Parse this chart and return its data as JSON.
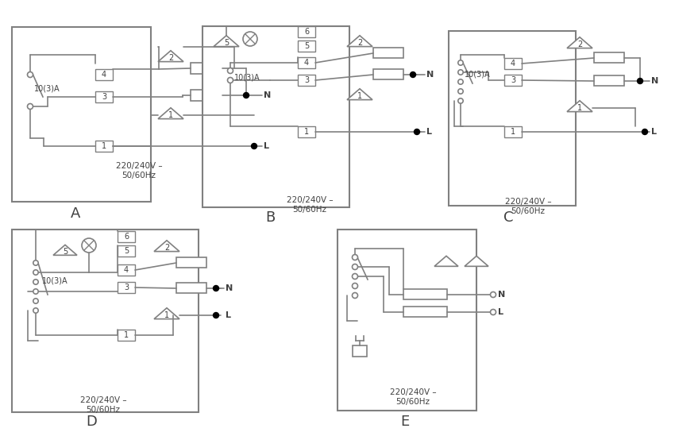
{
  "bg_color": "#ffffff",
  "line_color": "#808080",
  "dark_color": "#404040",
  "text_color": "#404040",
  "label_A": "A",
  "label_B": "B",
  "label_C": "C",
  "label_D": "D",
  "label_E": "E",
  "voltage_text": "220/240V –\n50/60Hz",
  "current_text": "10(3)A",
  "N_label": "N",
  "L_label": "L"
}
